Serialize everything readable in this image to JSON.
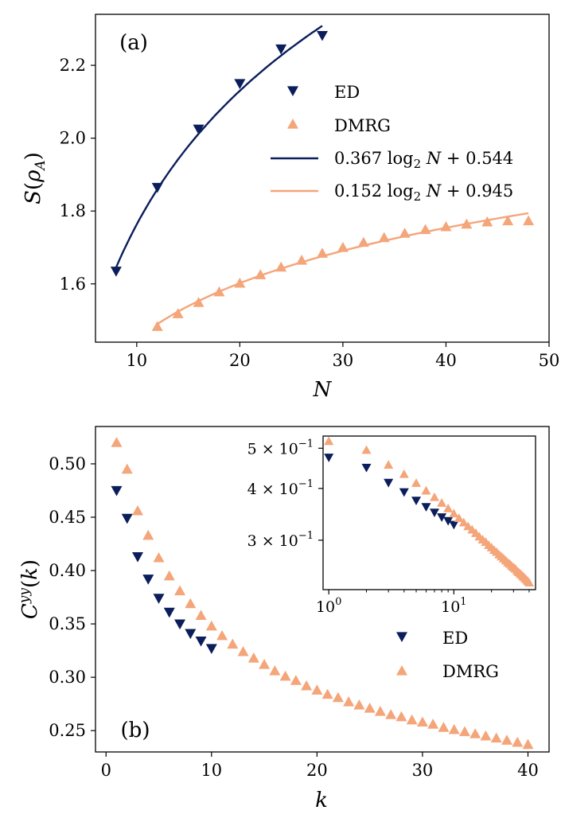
{
  "chart_data": [
    {
      "panel_label": "(a)",
      "type": "scatter",
      "xlabel": "N",
      "ylabel": "S(ρ_A)",
      "xlim": [
        6,
        50
      ],
      "ylim": [
        1.44,
        2.34
      ],
      "xticks": [
        10,
        20,
        30,
        40,
        50
      ],
      "yticks": [
        1.6,
        1.8,
        2.0,
        2.2
      ],
      "xtick_labels": [
        "10",
        "20",
        "30",
        "40",
        "50"
      ],
      "ytick_labels": [
        "1.6",
        "1.8",
        "2.0",
        "2.2"
      ],
      "legend_position": "right",
      "series": [
        {
          "name": "ED",
          "marker": "triangle-down",
          "color": "#0b1e5b",
          "x": [
            8,
            12,
            16,
            20,
            24,
            28
          ],
          "y": [
            1.635,
            1.865,
            2.025,
            2.15,
            2.245,
            2.282
          ]
        },
        {
          "name": "DMRG",
          "marker": "triangle-up",
          "color": "#f4a57a",
          "x": [
            12,
            14,
            16,
            18,
            20,
            22,
            24,
            26,
            28,
            30,
            32,
            34,
            36,
            38,
            40,
            42,
            44,
            46,
            48
          ],
          "y": [
            1.483,
            1.518,
            1.549,
            1.578,
            1.602,
            1.625,
            1.646,
            1.665,
            1.684,
            1.7,
            1.714,
            1.727,
            1.739,
            1.749,
            1.757,
            1.764,
            1.77,
            1.773,
            1.773
          ]
        }
      ],
      "fits": [
        {
          "name": "0.367 log_2 N + 0.544",
          "color": "#0b1e5b",
          "slope": 0.367,
          "intercept": 0.544,
          "x_range": [
            8,
            28
          ]
        },
        {
          "name": "0.152 log_2 N + 0.945",
          "color": "#f4a57a",
          "slope": 0.152,
          "intercept": 0.945,
          "x_range": [
            12,
            48
          ]
        }
      ]
    },
    {
      "panel_label": "(b)",
      "type": "scatter",
      "xlabel": "k",
      "ylabel": "C^{yy}(k)",
      "xlim": [
        -1,
        42
      ],
      "ylim": [
        0.23,
        0.535
      ],
      "xticks": [
        0,
        10,
        20,
        30,
        40
      ],
      "yticks": [
        0.25,
        0.3,
        0.35,
        0.4,
        0.45,
        0.5
      ],
      "xtick_labels": [
        "0",
        "10",
        "20",
        "30",
        "40"
      ],
      "ytick_labels": [
        "0.25",
        "0.30",
        "0.35",
        "0.40",
        "0.45",
        "0.50"
      ],
      "legend_position": "lower right",
      "series": [
        {
          "name": "ED",
          "marker": "triangle-down",
          "color": "#0b1e5b",
          "x": [
            1,
            2,
            3,
            4,
            5,
            6,
            7,
            8,
            9,
            10
          ],
          "y": [
            0.475,
            0.449,
            0.413,
            0.392,
            0.374,
            0.361,
            0.35,
            0.341,
            0.334,
            0.327
          ]
        },
        {
          "name": "DMRG",
          "marker": "triangle-up",
          "color": "#f4a57a",
          "x": [
            1,
            2,
            3,
            4,
            5,
            6,
            7,
            8,
            9,
            10,
            11,
            12,
            13,
            14,
            15,
            16,
            17,
            18,
            19,
            20,
            21,
            22,
            23,
            24,
            25,
            26,
            27,
            28,
            29,
            30,
            31,
            32,
            33,
            34,
            35,
            36,
            37,
            38,
            39,
            40
          ],
          "y": [
            0.52,
            0.495,
            0.456,
            0.433,
            0.412,
            0.395,
            0.381,
            0.369,
            0.358,
            0.348,
            0.339,
            0.331,
            0.324,
            0.318,
            0.312,
            0.306,
            0.301,
            0.297,
            0.292,
            0.288,
            0.284,
            0.281,
            0.277,
            0.274,
            0.271,
            0.268,
            0.265,
            0.263,
            0.26,
            0.258,
            0.256,
            0.253,
            0.251,
            0.249,
            0.247,
            0.245,
            0.243,
            0.241,
            0.239,
            0.237
          ]
        }
      ],
      "inset": {
        "type": "scatter",
        "xscale": "log",
        "yscale": "log",
        "xlim": [
          0.9,
          45
        ],
        "ylim": [
          0.228,
          0.535
        ],
        "xtick_labels": [
          "10^0",
          "10^1"
        ],
        "ytick_labels": [
          "3 × 10^{-1}",
          "4 × 10^{-1}",
          "5 × 10^{-1}"
        ],
        "note": "same data as main panel (b) on log-log axes"
      }
    }
  ]
}
